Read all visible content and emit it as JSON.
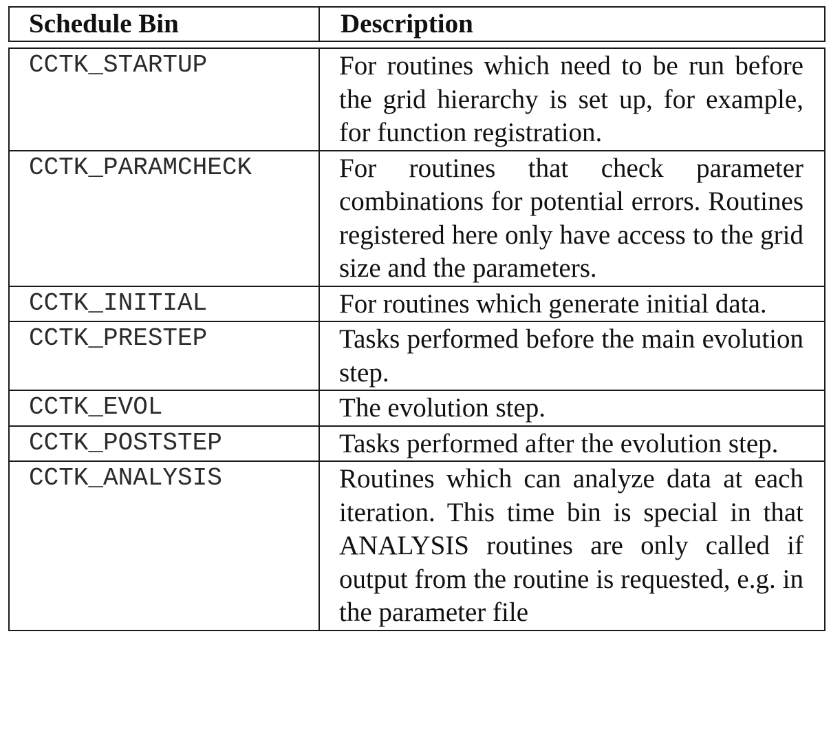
{
  "table": {
    "headers": [
      "Schedule Bin",
      "Description"
    ],
    "rows": [
      {
        "bin": "CCTK_STARTUP",
        "description": "For routines which need to be run before the grid hierarchy is set up, for example, for function registration."
      },
      {
        "bin": "CCTK_PARAMCHECK",
        "description": "For routines that check parame­ter combinations for potential errors. Routines registered here only have ac­cess to the grid size and the parame­ters."
      },
      {
        "bin": "CCTK_INITIAL",
        "description": "For routines which generate initial data."
      },
      {
        "bin": "CCTK_PRESTEP",
        "description": "Tasks performed before the main evo­lution step."
      },
      {
        "bin": "CCTK_EVOL",
        "description": "The evolution step."
      },
      {
        "bin": "CCTK_POSTSTEP",
        "description": "Tasks performed after the evolution step."
      },
      {
        "bin": "CCTK_ANALYSIS",
        "description": "Routines which can analyze data at each iteration. This time bin is special in that ANALYSIS routines are only called if output from the routine is requested, e.g. in the parameter file"
      }
    ]
  }
}
